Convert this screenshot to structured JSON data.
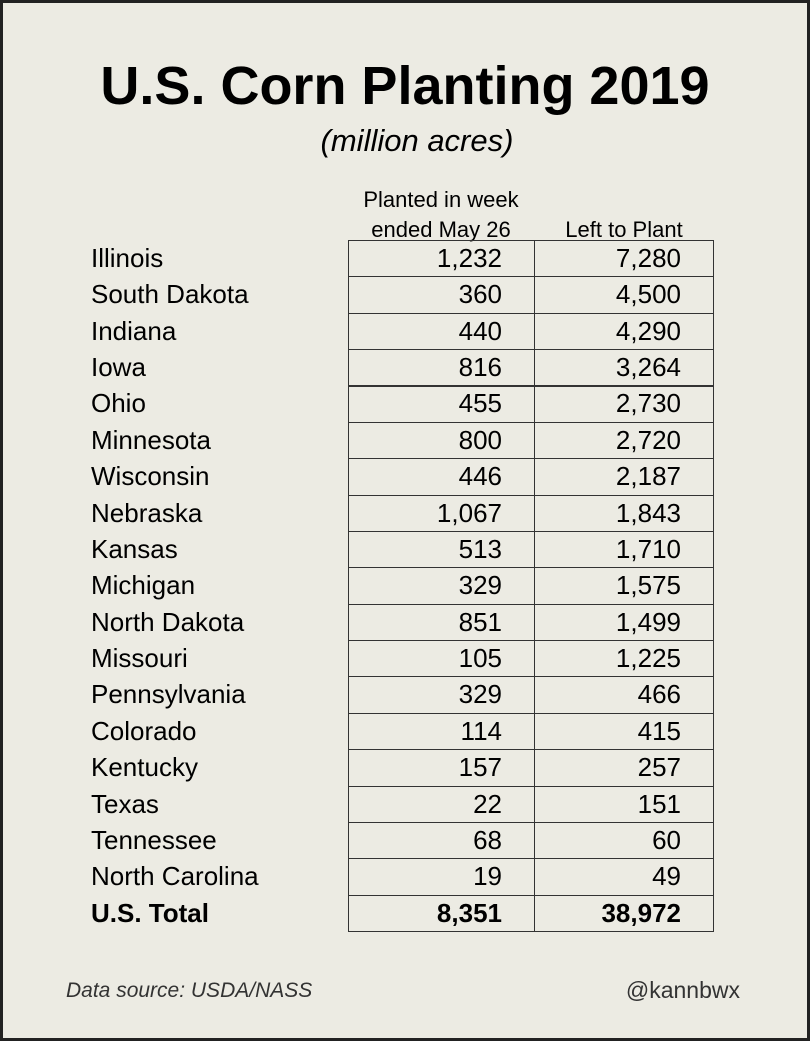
{
  "header": {
    "title": "U.S. Corn Planting 2019",
    "subtitle": "(million acres)"
  },
  "table": {
    "columns": [
      "Planted in week ended May 26",
      "Left to Plant"
    ],
    "rows": [
      [
        "Illinois",
        "1,232",
        "7,280"
      ],
      [
        "South Dakota",
        "360",
        "4,500"
      ],
      [
        "Indiana",
        "440",
        "4,290"
      ],
      [
        "Iowa",
        "816",
        "3,264"
      ],
      [
        "Ohio",
        "455",
        "2,730"
      ],
      [
        "Minnesota",
        "800",
        "2,720"
      ],
      [
        "Wisconsin",
        "446",
        "2,187"
      ],
      [
        "Nebraska",
        "1,067",
        "1,843"
      ],
      [
        "Kansas",
        "513",
        "1,710"
      ],
      [
        "Michigan",
        "329",
        "1,575"
      ],
      [
        "North Dakota",
        "851",
        "1,499"
      ],
      [
        "Missouri",
        "105",
        "1,225"
      ],
      [
        "Pennsylvania",
        "329",
        "466"
      ],
      [
        "Colorado",
        "114",
        "415"
      ],
      [
        "Kentucky",
        "157",
        "257"
      ],
      [
        "Texas",
        "22",
        "151"
      ],
      [
        "Tennessee",
        "68",
        "60"
      ],
      [
        "North Carolina",
        "19",
        "49"
      ]
    ],
    "total": [
      "U.S. Total",
      "8,351",
      "38,972"
    ]
  },
  "footer": {
    "source": "Data source: USDA/NASS",
    "handle": "@kannbwx"
  }
}
